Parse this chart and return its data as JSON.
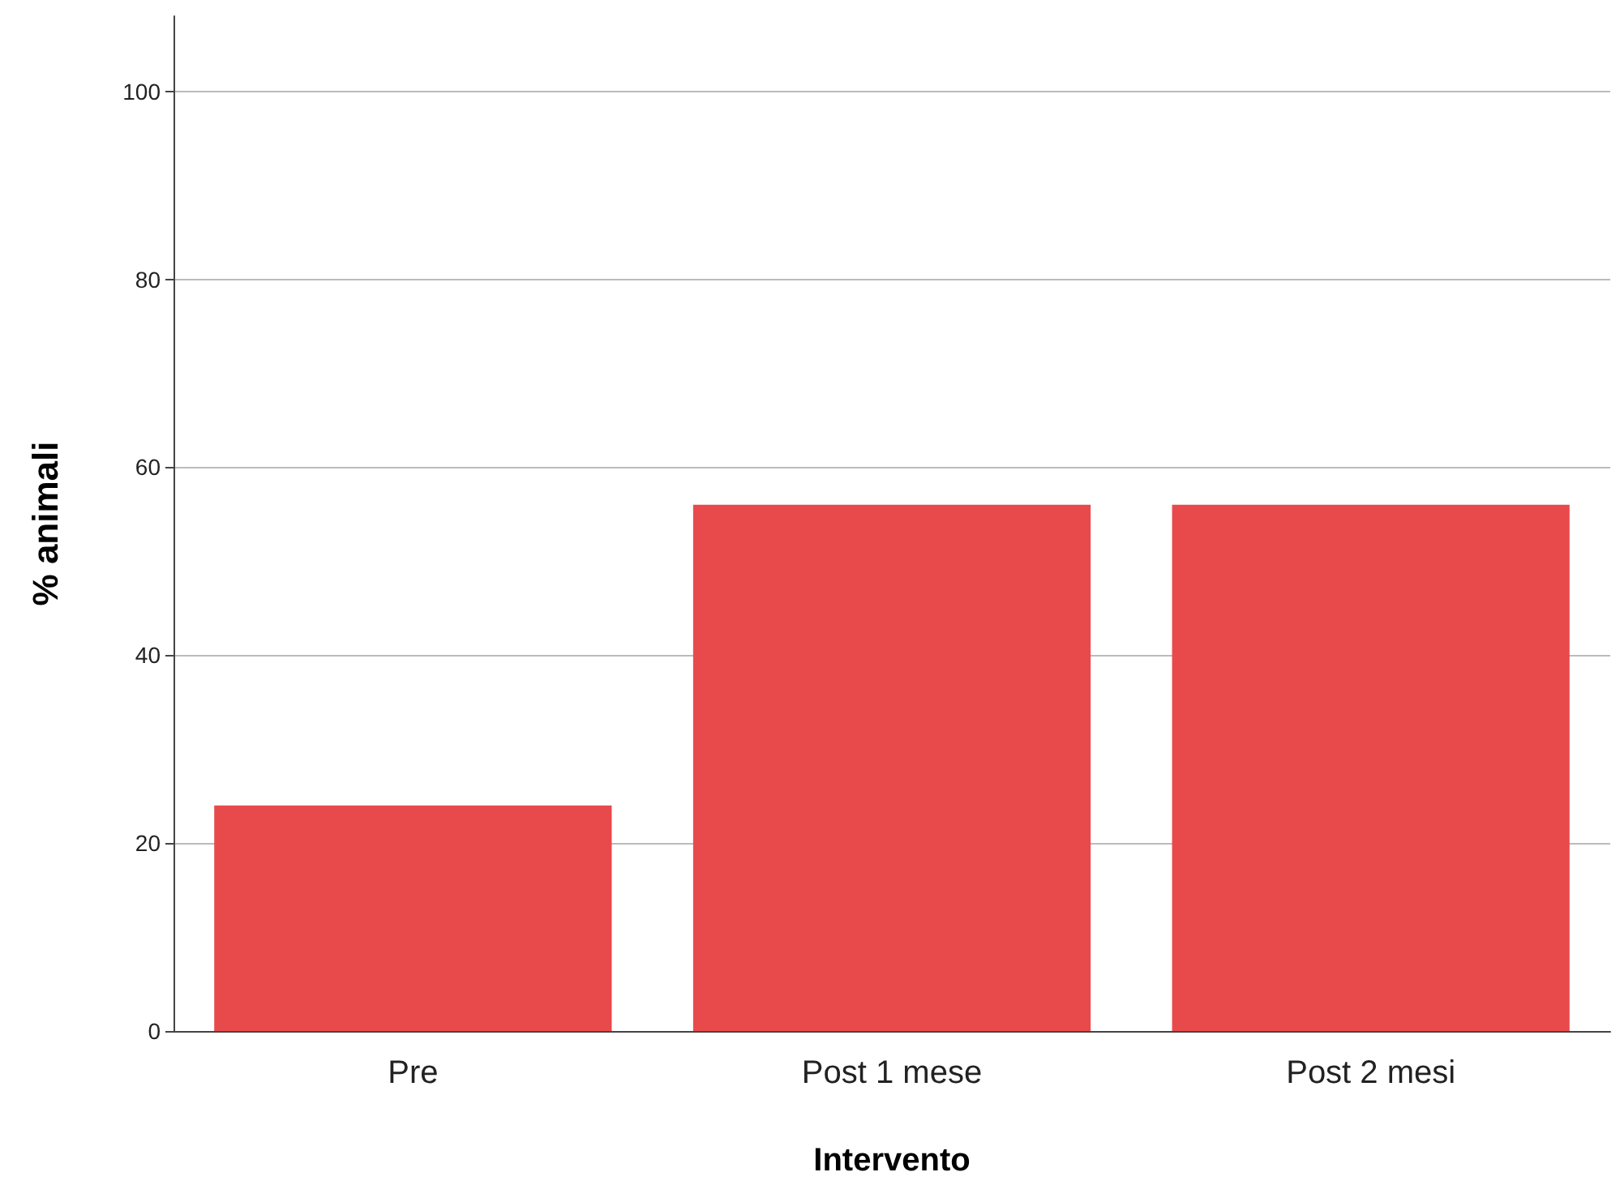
{
  "chart_data": {
    "type": "bar",
    "xlabel": "Intervento",
    "ylabel": "% animali",
    "categories": [
      "Pre",
      "Post 1 mese",
      "Post 2 mesi"
    ],
    "values": [
      24,
      56,
      56
    ],
    "color": "#e84a4b",
    "ylim": [
      0,
      108
    ],
    "yticks": [
      0,
      20,
      40,
      60,
      80,
      100
    ],
    "grid": "y"
  }
}
